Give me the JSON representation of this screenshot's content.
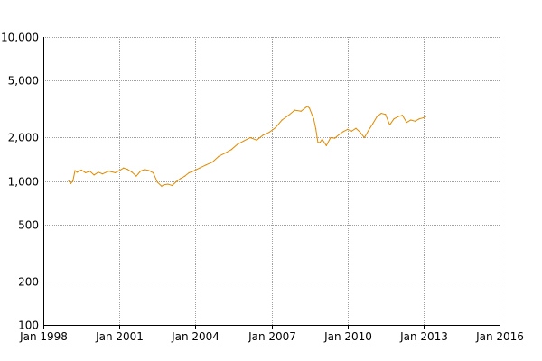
{
  "chart_data": {
    "type": "line",
    "title": "",
    "xlabel": "",
    "ylabel": "",
    "y_scale": "log",
    "ylim": [
      100,
      10000
    ],
    "xlim": [
      "1998-01",
      "2016-01"
    ],
    "grid": true,
    "legend": "none",
    "line_color": "#e08a00",
    "x_ticks": [
      {
        "date": "1998-01",
        "label": "Jan 1998"
      },
      {
        "date": "2001-01",
        "label": "Jan 2001"
      },
      {
        "date": "2004-01",
        "label": "Jan 2004"
      },
      {
        "date": "2007-01",
        "label": "Jan 2007"
      },
      {
        "date": "2010-01",
        "label": "Jan 2010"
      },
      {
        "date": "2013-01",
        "label": "Jan 2013"
      },
      {
        "date": "2016-01",
        "label": "Jan 2016"
      }
    ],
    "y_ticks": [
      {
        "value": 10000,
        "label": "10,000"
      },
      {
        "value": 5000,
        "label": "5,000"
      },
      {
        "value": 2000,
        "label": "2,000"
      },
      {
        "value": 1000,
        "label": "1,000"
      },
      {
        "value": 500,
        "label": "500"
      },
      {
        "value": 200,
        "label": "200"
      },
      {
        "value": 100,
        "label": "100"
      }
    ],
    "series": [
      {
        "points": [
          [
            "1999-01",
            1000
          ],
          [
            "1999-02",
            960
          ],
          [
            "1999-03",
            1000
          ],
          [
            "1999-04",
            1180
          ],
          [
            "1999-05",
            1150
          ],
          [
            "1999-07",
            1190
          ],
          [
            "1999-09",
            1140
          ],
          [
            "1999-11",
            1170
          ],
          [
            "2000-01",
            1100
          ],
          [
            "2000-03",
            1150
          ],
          [
            "2000-05",
            1120
          ],
          [
            "2000-08",
            1170
          ],
          [
            "2000-11",
            1140
          ],
          [
            "2001-01",
            1180
          ],
          [
            "2001-03",
            1230
          ],
          [
            "2001-05",
            1200
          ],
          [
            "2001-07",
            1150
          ],
          [
            "2001-09",
            1080
          ],
          [
            "2001-11",
            1170
          ],
          [
            "2002-01",
            1200
          ],
          [
            "2002-03",
            1180
          ],
          [
            "2002-05",
            1140
          ],
          [
            "2002-07",
            980
          ],
          [
            "2002-09",
            920
          ],
          [
            "2002-10",
            940
          ],
          [
            "2002-12",
            950
          ],
          [
            "2003-02",
            930
          ],
          [
            "2003-04",
            990
          ],
          [
            "2003-06",
            1040
          ],
          [
            "2003-08",
            1080
          ],
          [
            "2003-10",
            1140
          ],
          [
            "2003-12",
            1170
          ],
          [
            "2004-03",
            1230
          ],
          [
            "2004-06",
            1290
          ],
          [
            "2004-09",
            1350
          ],
          [
            "2004-12",
            1480
          ],
          [
            "2005-03",
            1560
          ],
          [
            "2005-06",
            1650
          ],
          [
            "2005-09",
            1800
          ],
          [
            "2005-12",
            1900
          ],
          [
            "2006-03",
            2000
          ],
          [
            "2006-06",
            1920
          ],
          [
            "2006-09",
            2080
          ],
          [
            "2006-12",
            2180
          ],
          [
            "2007-03",
            2350
          ],
          [
            "2007-06",
            2650
          ],
          [
            "2007-09",
            2850
          ],
          [
            "2007-12",
            3100
          ],
          [
            "2008-03",
            3050
          ],
          [
            "2008-06",
            3300
          ],
          [
            "2008-07",
            3200
          ],
          [
            "2008-09",
            2700
          ],
          [
            "2008-10",
            2300
          ],
          [
            "2008-11",
            1850
          ],
          [
            "2008-12",
            1850
          ],
          [
            "2009-01",
            1950
          ],
          [
            "2009-03",
            1760
          ],
          [
            "2009-05",
            2000
          ],
          [
            "2009-07",
            1980
          ],
          [
            "2009-09",
            2100
          ],
          [
            "2009-11",
            2200
          ],
          [
            "2010-01",
            2280
          ],
          [
            "2010-03",
            2220
          ],
          [
            "2010-05",
            2320
          ],
          [
            "2010-07",
            2180
          ],
          [
            "2010-09",
            2000
          ],
          [
            "2010-11",
            2250
          ],
          [
            "2011-01",
            2500
          ],
          [
            "2011-03",
            2800
          ],
          [
            "2011-05",
            2950
          ],
          [
            "2011-07",
            2900
          ],
          [
            "2011-09",
            2450
          ],
          [
            "2011-11",
            2700
          ],
          [
            "2012-01",
            2800
          ],
          [
            "2012-03",
            2860
          ],
          [
            "2012-05",
            2550
          ],
          [
            "2012-07",
            2650
          ],
          [
            "2012-09",
            2600
          ],
          [
            "2012-11",
            2700
          ],
          [
            "2013-01",
            2750
          ],
          [
            "2013-02",
            2800
          ]
        ]
      }
    ]
  }
}
